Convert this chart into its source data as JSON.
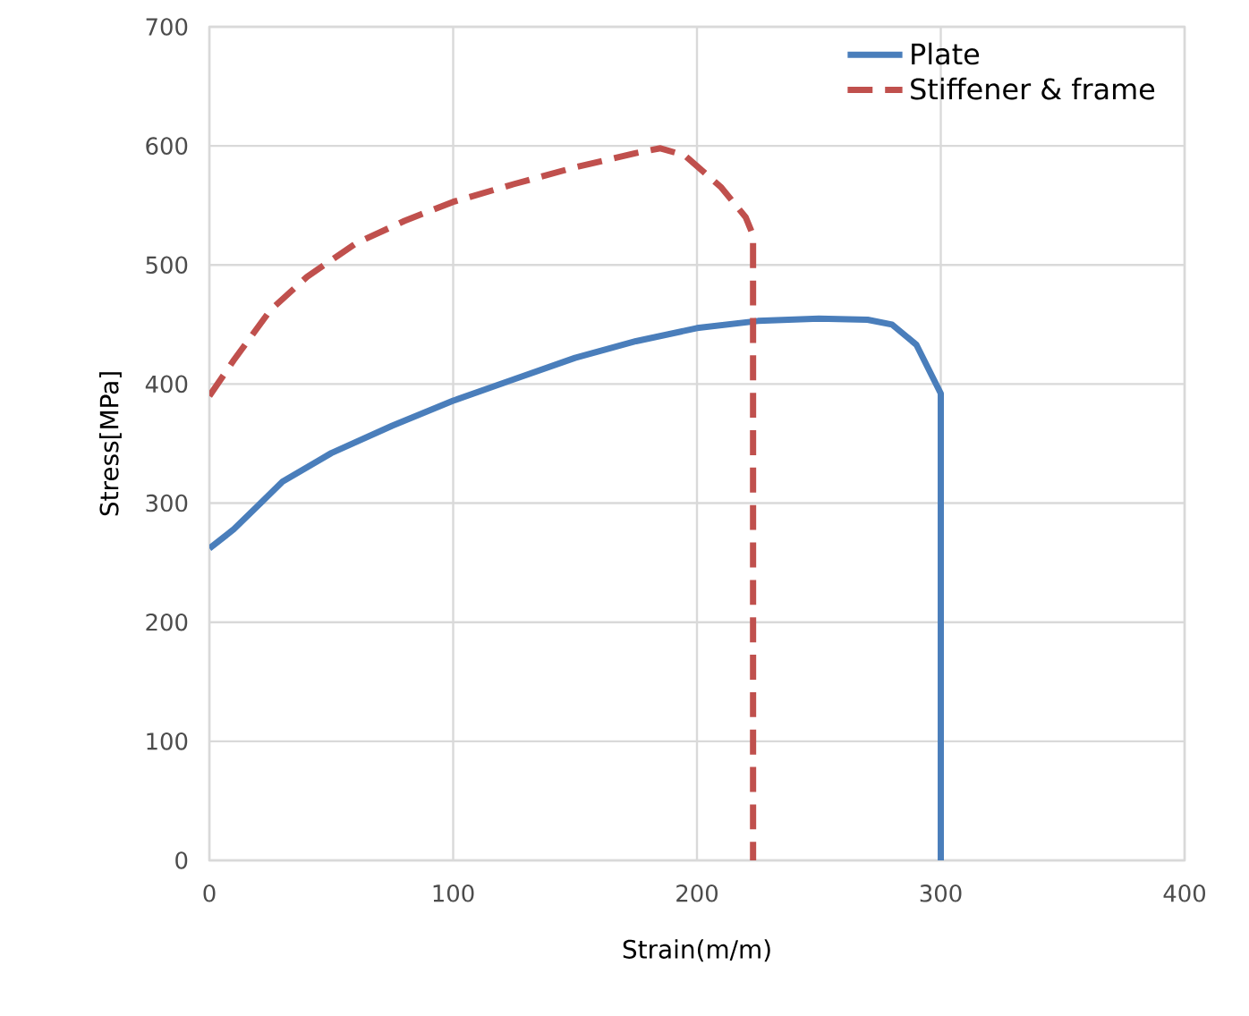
{
  "chart_data": {
    "type": "line",
    "xlabel": "Strain(m/m)",
    "ylabel": "Stress[MPa]",
    "xlim": [
      0,
      400
    ],
    "ylim": [
      0,
      700
    ],
    "xticks": [
      0,
      100,
      200,
      300,
      400
    ],
    "yticks": [
      0,
      100,
      200,
      300,
      400,
      500,
      600,
      700
    ],
    "grid": true,
    "legend": "top right",
    "series": [
      {
        "name": "Plate",
        "color": "#4a7ebb",
        "line_style": "solid",
        "x": [
          0,
          10,
          20,
          30,
          50,
          75,
          100,
          125,
          150,
          175,
          200,
          225,
          250,
          270,
          280,
          290,
          300,
          300
        ],
        "values": [
          262,
          278,
          298,
          318,
          342,
          365,
          386,
          404,
          422,
          436,
          447,
          453,
          455,
          454,
          450,
          433,
          392,
          0
        ]
      },
      {
        "name": "Stiffener & frame",
        "color": "#c0504d",
        "line_style": "dashed",
        "x": [
          0,
          10,
          25,
          40,
          60,
          80,
          100,
          125,
          150,
          175,
          185,
          195,
          210,
          220,
          223,
          223
        ],
        "values": [
          390,
          420,
          462,
          490,
          518,
          537,
          553,
          568,
          582,
          594,
          598,
          592,
          565,
          540,
          525,
          0
        ]
      }
    ]
  }
}
